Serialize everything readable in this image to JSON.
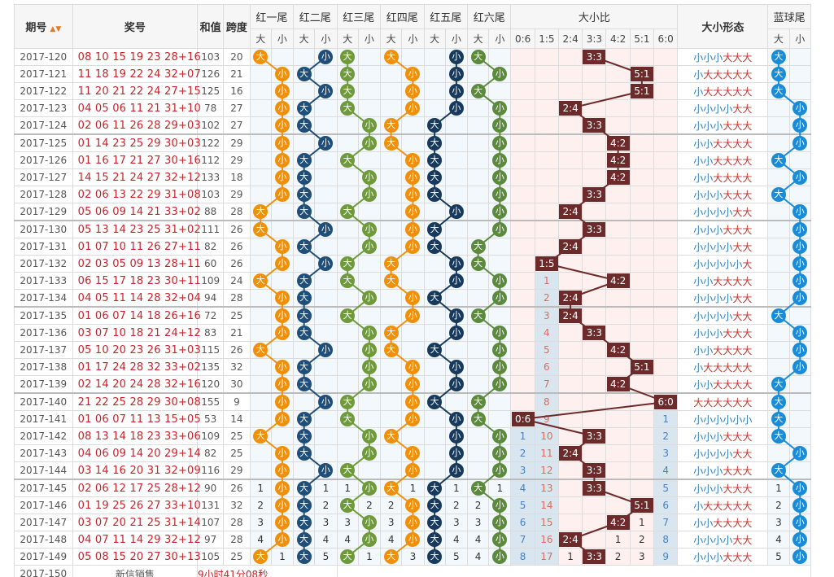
{
  "header": {
    "issue": "期号",
    "numbers": "奖号",
    "sum": "和值",
    "span": "跨度",
    "tails": [
      "红一尾",
      "红二尾",
      "红三尾",
      "红四尾",
      "红五尾",
      "红六尾"
    ],
    "ratio": "大小比",
    "form": "大小形态",
    "blue": "蓝球尾",
    "big": "大",
    "small": "小",
    "ratios": [
      "0:6",
      "1:5",
      "2:4",
      "3:3",
      "4:2",
      "5:1",
      "6:0"
    ],
    "sort_icon": "sort-arrows-icon"
  },
  "colors": {
    "tail_orange": "#f0900a",
    "tail_navy": "#1f4e79",
    "tail_green": "#6f9a3a",
    "tail_navy2": "#16395c",
    "tail_darkgreen": "#5b8a3c",
    "blue_ball": "#1a8bd6",
    "ratio_box": "#6d2a2a",
    "number_red": "#c8232a"
  },
  "rows": [
    {
      "issue": "2017-120",
      "nums": "08 10 15 19 23 28",
      "blue": "+16",
      "sum": "103",
      "span": "20",
      "tails": [
        "D",
        "X",
        "D",
        "D",
        "X",
        "D"
      ],
      "ratio": "3:3",
      "form": "小小小大大大",
      "bt": "D",
      "miss": []
    },
    {
      "issue": "2017-121",
      "nums": "11 18 19 22 24 32",
      "blue": "+07",
      "sum": "126",
      "span": "21",
      "tails": [
        "X",
        "D",
        "D",
        "X",
        "X",
        "X"
      ],
      "ratio": "5:1",
      "form": "小大大大大大",
      "bt": "D",
      "miss": []
    },
    {
      "issue": "2017-122",
      "nums": "11 20 21 22 24 27",
      "blue": "+15",
      "sum": "125",
      "span": "16",
      "tails": [
        "X",
        "X",
        "D",
        "X",
        "X",
        "D"
      ],
      "ratio": "5:1",
      "form": "小大大大大大",
      "bt": "D",
      "miss": []
    },
    {
      "issue": "2017-123",
      "nums": "04 05 06 11 21 31",
      "blue": "+10",
      "sum": "78",
      "span": "27",
      "tails": [
        "X",
        "D",
        "D",
        "X",
        "X",
        "X"
      ],
      "ratio": "2:4",
      "form": "小小小小大大",
      "bt": "X",
      "miss": []
    },
    {
      "issue": "2017-124",
      "nums": "02 06 11 26 28 29",
      "blue": "+03",
      "sum": "102",
      "span": "27",
      "tails": [
        "X",
        "D",
        "X",
        "D",
        "D",
        "X"
      ],
      "ratio": "3:3",
      "form": "小小小大大大",
      "bt": "X",
      "miss": []
    },
    {
      "issue": "2017-125",
      "nums": "01 14 23 25 29 30",
      "blue": "+03",
      "sum": "122",
      "span": "29",
      "tails": [
        "X",
        "X",
        "X",
        "D",
        "D",
        "X"
      ],
      "ratio": "4:2",
      "form": "小小大大大大",
      "bt": "X",
      "miss": []
    },
    {
      "issue": "2017-126",
      "nums": "01 16 17 21 27 30",
      "blue": "+16",
      "sum": "112",
      "span": "29",
      "tails": [
        "X",
        "D",
        "D",
        "X",
        "D",
        "X"
      ],
      "ratio": "4:2",
      "form": "小小大大大大",
      "bt": "D",
      "miss": []
    },
    {
      "issue": "2017-127",
      "nums": "14 15 21 24 27 32",
      "blue": "+12",
      "sum": "133",
      "span": "18",
      "tails": [
        "X",
        "D",
        "X",
        "X",
        "D",
        "X"
      ],
      "ratio": "4:2",
      "form": "小小大大大大",
      "bt": "X",
      "miss": []
    },
    {
      "issue": "2017-128",
      "nums": "02 06 13 22 29 31",
      "blue": "+08",
      "sum": "103",
      "span": "29",
      "tails": [
        "X",
        "D",
        "X",
        "X",
        "D",
        "X"
      ],
      "ratio": "3:3",
      "form": "小小小大大大",
      "bt": "D",
      "miss": []
    },
    {
      "issue": "2017-129",
      "nums": "05 06 09 14 21 33",
      "blue": "+02",
      "sum": "88",
      "span": "28",
      "tails": [
        "D",
        "D",
        "D",
        "X",
        "X",
        "X"
      ],
      "ratio": "2:4",
      "form": "小小小小大大",
      "bt": "X",
      "miss": []
    },
    {
      "issue": "2017-130",
      "nums": "05 13 14 23 25 31",
      "blue": "+02",
      "sum": "111",
      "span": "26",
      "tails": [
        "D",
        "X",
        "X",
        "X",
        "D",
        "X"
      ],
      "ratio": "3:3",
      "form": "小小小大大大",
      "bt": "X",
      "miss": []
    },
    {
      "issue": "2017-131",
      "nums": "01 07 10 11 26 27",
      "blue": "+11",
      "sum": "82",
      "span": "26",
      "tails": [
        "X",
        "D",
        "X",
        "X",
        "D",
        "D"
      ],
      "ratio": "2:4",
      "form": "小小小小大大",
      "bt": "X",
      "miss": []
    },
    {
      "issue": "2017-132",
      "nums": "02 03 05 09 13 28",
      "blue": "+11",
      "sum": "60",
      "span": "26",
      "tails": [
        "X",
        "X",
        "D",
        "D",
        "X",
        "D"
      ],
      "ratio": "1:5",
      "form": "小小小小小大",
      "bt": "X",
      "miss": []
    },
    {
      "issue": "2017-133",
      "nums": "06 15 17 18 23 30",
      "blue": "+11",
      "sum": "109",
      "span": "24",
      "tails": [
        "D",
        "D",
        "D",
        "D",
        "X",
        "X"
      ],
      "ratio": "4:2",
      "form": "小小大大大大",
      "bt": "X",
      "miss": [
        [
          "1:5",
          "1"
        ]
      ]
    },
    {
      "issue": "2017-134",
      "nums": "04 05 11 14 28 32",
      "blue": "+04",
      "sum": "94",
      "span": "28",
      "tails": [
        "X",
        "D",
        "X",
        "X",
        "D",
        "X"
      ],
      "ratio": "2:4",
      "form": "小小小小大大",
      "bt": "X",
      "miss": [
        [
          "1:5",
          "2"
        ]
      ]
    },
    {
      "issue": "2017-135",
      "nums": "01 06 07 14 18 26",
      "blue": "+16",
      "sum": "72",
      "span": "25",
      "tails": [
        "X",
        "D",
        "D",
        "X",
        "X",
        "D"
      ],
      "ratio": "2:4",
      "form": "小小小小大大",
      "bt": "D",
      "miss": [
        [
          "1:5",
          "3"
        ]
      ]
    },
    {
      "issue": "2017-136",
      "nums": "03 07 10 18 21 24",
      "blue": "+12",
      "sum": "83",
      "span": "21",
      "tails": [
        "X",
        "D",
        "X",
        "D",
        "X",
        "X"
      ],
      "ratio": "3:3",
      "form": "小小小大大大",
      "bt": "X",
      "miss": [
        [
          "1:5",
          "4"
        ]
      ]
    },
    {
      "issue": "2017-137",
      "nums": "05 10 20 23 26 31",
      "blue": "+03",
      "sum": "115",
      "span": "26",
      "tails": [
        "D",
        "X",
        "X",
        "D",
        "D",
        "X"
      ],
      "ratio": "4:2",
      "form": "小小大大大大",
      "bt": "X",
      "miss": [
        [
          "1:5",
          "5"
        ]
      ]
    },
    {
      "issue": "2017-138",
      "nums": "01 17 24 28 32 33",
      "blue": "+02",
      "sum": "135",
      "span": "32",
      "tails": [
        "X",
        "D",
        "X",
        "X",
        "X",
        "X"
      ],
      "ratio": "5:1",
      "form": "小大大大大大",
      "bt": "X",
      "miss": [
        [
          "1:5",
          "6"
        ]
      ]
    },
    {
      "issue": "2017-139",
      "nums": "02 14 20 24 28 32",
      "blue": "+16",
      "sum": "120",
      "span": "30",
      "tails": [
        "X",
        "D",
        "X",
        "X",
        "X",
        "X"
      ],
      "ratio": "4:2",
      "form": "小小大大大大",
      "bt": "D",
      "miss": [
        [
          "1:5",
          "7"
        ]
      ]
    },
    {
      "issue": "2017-140",
      "nums": "21 22 25 28 29 30",
      "blue": "+08",
      "sum": "155",
      "span": "9",
      "tails": [
        "X",
        "X",
        "D",
        "X",
        "D",
        "D"
      ],
      "ratio": "6:0",
      "form": "大大大大大大",
      "bt": "D",
      "miss": [
        [
          "1:5",
          "8"
        ]
      ]
    },
    {
      "issue": "2017-141",
      "nums": "01 06 07 11 13 15",
      "blue": "+05",
      "sum": "53",
      "span": "14",
      "tails": [
        "X",
        "D",
        "D",
        "X",
        "X",
        "D"
      ],
      "ratio": "0:6",
      "form": "小小小小小小",
      "bt": "D",
      "miss": [
        [
          "1:5",
          "9"
        ],
        [
          "6:0",
          "1"
        ]
      ]
    },
    {
      "issue": "2017-142",
      "nums": "08 13 14 18 23 33",
      "blue": "+06",
      "sum": "109",
      "span": "25",
      "tails": [
        "D",
        "D",
        "X",
        "D",
        "X",
        "X"
      ],
      "ratio": "3:3",
      "form": "小小小大大大",
      "bt": "D",
      "miss": [
        [
          "0:6",
          "1"
        ],
        [
          "1:5",
          "10"
        ],
        [
          "6:0",
          "2"
        ]
      ]
    },
    {
      "issue": "2017-143",
      "nums": "04 06 09 14 20 29",
      "blue": "+14",
      "sum": "82",
      "span": "25",
      "tails": [
        "X",
        "D",
        "X",
        "X",
        "X",
        "X"
      ],
      "ratio": "2:4",
      "form": "小小小小大大",
      "bt": "X",
      "miss": [
        [
          "0:6",
          "2"
        ],
        [
          "1:5",
          "11"
        ],
        [
          "6:0",
          "3"
        ]
      ]
    },
    {
      "issue": "2017-144",
      "nums": "03 14 16 20 31 32",
      "blue": "+09",
      "sum": "116",
      "span": "29",
      "tails": [
        "X",
        "X",
        "D",
        "X",
        "X",
        "X"
      ],
      "ratio": "3:3",
      "form": "小小小大大大",
      "bt": "D",
      "miss": [
        [
          "0:6",
          "3"
        ],
        [
          "1:5",
          "12"
        ],
        [
          "6:0",
          "4"
        ]
      ]
    },
    {
      "issue": "2017-145",
      "nums": "02 06 12 17 25 28",
      "blue": "+12",
      "sum": "90",
      "span": "26",
      "tails": [
        "X",
        "D",
        "X",
        "D",
        "D",
        "D"
      ],
      "ratio": "3:3",
      "form": "小小小大大大",
      "bt": "X",
      "miss": [
        [
          "0:6",
          "4"
        ],
        [
          "1:5",
          "13"
        ],
        [
          "6:0",
          "5"
        ]
      ],
      "cnt": [
        "1",
        "1",
        "1",
        "1",
        "1",
        "1"
      ]
    },
    {
      "issue": "2017-146",
      "nums": "01 19 25 26 27 33",
      "blue": "+10",
      "sum": "131",
      "span": "32",
      "tails": [
        "X",
        "D",
        "D",
        "X",
        "D",
        "X"
      ],
      "ratio": "5:1",
      "form": "小大大大大大",
      "bt": "X",
      "miss": [
        [
          "0:6",
          "5"
        ],
        [
          "1:5",
          "14"
        ],
        [
          "6:0",
          "6"
        ]
      ],
      "cnt": [
        "2",
        "2",
        "2",
        "2",
        "2",
        "2"
      ]
    },
    {
      "issue": "2017-147",
      "nums": "03 07 20 21 25 31",
      "blue": "+14",
      "sum": "107",
      "span": "28",
      "tails": [
        "X",
        "D",
        "X",
        "X",
        "D",
        "X"
      ],
      "ratio": "4:2",
      "form": "小小大大大大",
      "bt": "X",
      "miss": [
        [
          "0:6",
          "6"
        ],
        [
          "1:5",
          "15"
        ],
        [
          "5:1",
          "1"
        ],
        [
          "6:0",
          "7"
        ]
      ],
      "cnt": [
        "3",
        "3",
        "3",
        "3",
        "3",
        "3"
      ]
    },
    {
      "issue": "2017-148",
      "nums": "04 07 11 14 29 32",
      "blue": "+12",
      "sum": "97",
      "span": "28",
      "tails": [
        "X",
        "D",
        "X",
        "X",
        "D",
        "X"
      ],
      "ratio": "2:4",
      "form": "小小小小大大",
      "bt": "X",
      "miss": [
        [
          "0:6",
          "7"
        ],
        [
          "1:5",
          "16"
        ],
        [
          "4:2",
          "1"
        ],
        [
          "5:1",
          "2"
        ],
        [
          "6:0",
          "8"
        ]
      ],
      "cnt": [
        "4",
        "4",
        "4",
        "4",
        "4",
        "4"
      ]
    },
    {
      "issue": "2017-149",
      "nums": "05 08 15 20 27 30",
      "blue": "+13",
      "sum": "105",
      "span": "25",
      "tails": [
        "D",
        "D",
        "D",
        "D",
        "D",
        "X"
      ],
      "ratio": "3:3",
      "form": "小小小大大大",
      "bt": "X",
      "miss": [
        [
          "0:6",
          "8"
        ],
        [
          "1:5",
          "17"
        ],
        [
          "2:4",
          "1"
        ],
        [
          "4:2",
          "2"
        ],
        [
          "5:1",
          "3"
        ],
        [
          "6:0",
          "9"
        ]
      ],
      "cnt": [
        "1",
        "5",
        "1",
        "3",
        "5",
        "4"
      ]
    }
  ],
  "footer": {
    "issue": "2017-150",
    "label": "新信销售",
    "countdown": "9小时41分08秒"
  }
}
